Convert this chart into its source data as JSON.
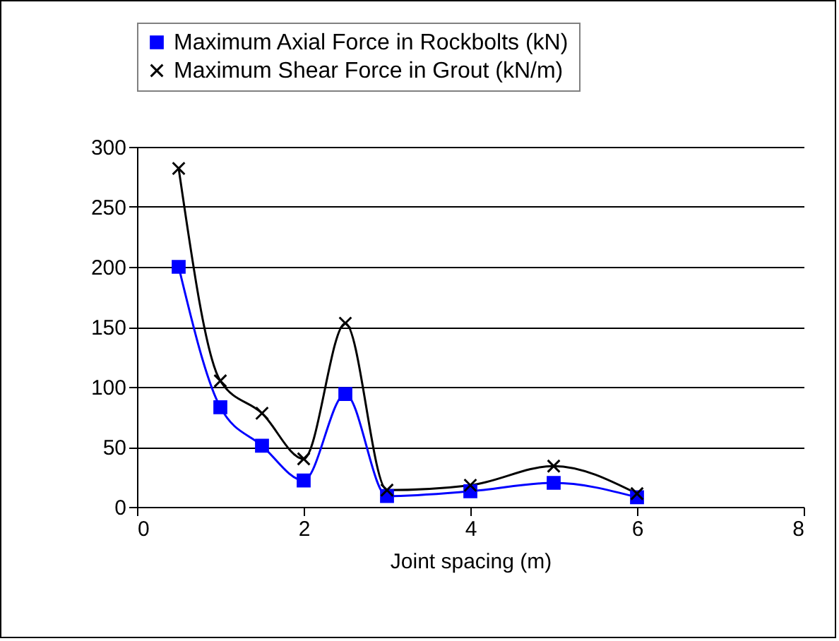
{
  "chart_data": {
    "type": "line",
    "xlabel": "Joint spacing (m)",
    "x": [
      0.5,
      1,
      1.5,
      2,
      2.5,
      3,
      4,
      5,
      6
    ],
    "series": [
      {
        "name": "Maximum Axial Force in Rockbolts (kN)",
        "color": "#0000ff",
        "marker": "square",
        "values": [
          200,
          83,
          51,
          22,
          94,
          9,
          13,
          20,
          8
        ]
      },
      {
        "name": "Maximum Shear Force in Grout (kN/m)",
        "color": "#000000",
        "marker": "cross",
        "values": [
          282,
          105,
          78,
          40,
          153,
          14,
          18,
          34,
          11
        ]
      }
    ],
    "xlim": [
      0,
      8
    ],
    "xticks": [
      0,
      2,
      4,
      6,
      8
    ],
    "ylim": [
      0,
      300
    ],
    "yticks": [
      0,
      50,
      100,
      150,
      200,
      250,
      300
    ],
    "grid": "y",
    "legend": "top",
    "line_style": "solid"
  }
}
